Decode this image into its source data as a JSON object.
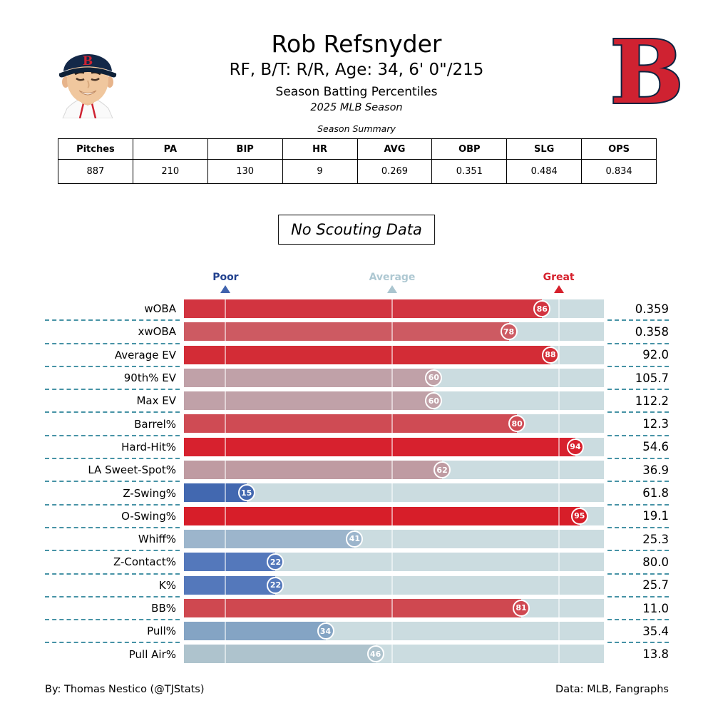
{
  "header": {
    "title": "Rob Refsnyder",
    "subtitle": "RF, B/T: R/R, Age: 34, 6' 0\"/215",
    "line3": "Season Batting Percentiles",
    "line4": "2025 MLB Season",
    "team_logo_letter": "B",
    "team_red": "#cf2231",
    "team_navy": "#0d2340"
  },
  "summary": {
    "caption": "Season Summary",
    "columns": [
      "Pitches",
      "PA",
      "BIP",
      "HR",
      "AVG",
      "OBP",
      "SLG",
      "OPS"
    ],
    "values": [
      "887",
      "210",
      "130",
      "9",
      "0.269",
      "0.351",
      "0.484",
      "0.834"
    ]
  },
  "scouting_note": "No Scouting Data",
  "chart_data": {
    "type": "bar",
    "orientation": "horizontal",
    "title": "Season Batting Percentiles",
    "axis": {
      "min": 0,
      "max": 100,
      "unit": "percentile"
    },
    "track_color": "#cbdce0",
    "gridline_percentiles": [
      10,
      50,
      90
    ],
    "markers": [
      {
        "label": "Poor",
        "percentile": 10,
        "label_color": "#21418e",
        "triangle_color": "#4063ae"
      },
      {
        "label": "Average",
        "percentile": 50,
        "label_color": "#aec8d2",
        "triangle_color": "#aac5cf"
      },
      {
        "label": "Great",
        "percentile": 90,
        "label_color": "#d6202c",
        "triangle_color": "#d6202c"
      }
    ],
    "rows": [
      {
        "label": "wOBA",
        "percentile": 86,
        "value": "0.359",
        "color": "#d23440"
      },
      {
        "label": "xwOBA",
        "percentile": 78,
        "value": "0.358",
        "color": "#cd5a62"
      },
      {
        "label": "Average EV",
        "percentile": 88,
        "value": "92.0",
        "color": "#d32c36"
      },
      {
        "label": "90th% EV",
        "percentile": 60,
        "value": "105.7",
        "color": "#c0a1a8"
      },
      {
        "label": "Max EV",
        "percentile": 60,
        "value": "112.2",
        "color": "#c0a1a8"
      },
      {
        "label": "Barrel%",
        "percentile": 80,
        "value": "12.3",
        "color": "#cf4b54"
      },
      {
        "label": "Hard-Hit%",
        "percentile": 94,
        "value": "54.6",
        "color": "#d7212e"
      },
      {
        "label": "LA Sweet-Spot%",
        "percentile": 62,
        "value": "36.9",
        "color": "#bf9ba2"
      },
      {
        "label": "Z-Swing%",
        "percentile": 15,
        "value": "61.8",
        "color": "#4268b0"
      },
      {
        "label": "O-Swing%",
        "percentile": 95,
        "value": "19.1",
        "color": "#d71e29"
      },
      {
        "label": "Whiff%",
        "percentile": 41,
        "value": "25.3",
        "color": "#9cb5cc"
      },
      {
        "label": "Z-Contact%",
        "percentile": 22,
        "value": "80.0",
        "color": "#5478bb"
      },
      {
        "label": "K%",
        "percentile": 22,
        "value": "25.7",
        "color": "#5478bb"
      },
      {
        "label": "BB%",
        "percentile": 81,
        "value": "11.0",
        "color": "#cf4850"
      },
      {
        "label": "Pull%",
        "percentile": 34,
        "value": "35.4",
        "color": "#84a4c4"
      },
      {
        "label": "Pull Air%",
        "percentile": 46,
        "value": "13.8",
        "color": "#aec3cd"
      }
    ]
  },
  "footer": {
    "left": "By: Thomas Nestico (@TJStats)",
    "right": "Data: MLB, Fangraphs"
  }
}
